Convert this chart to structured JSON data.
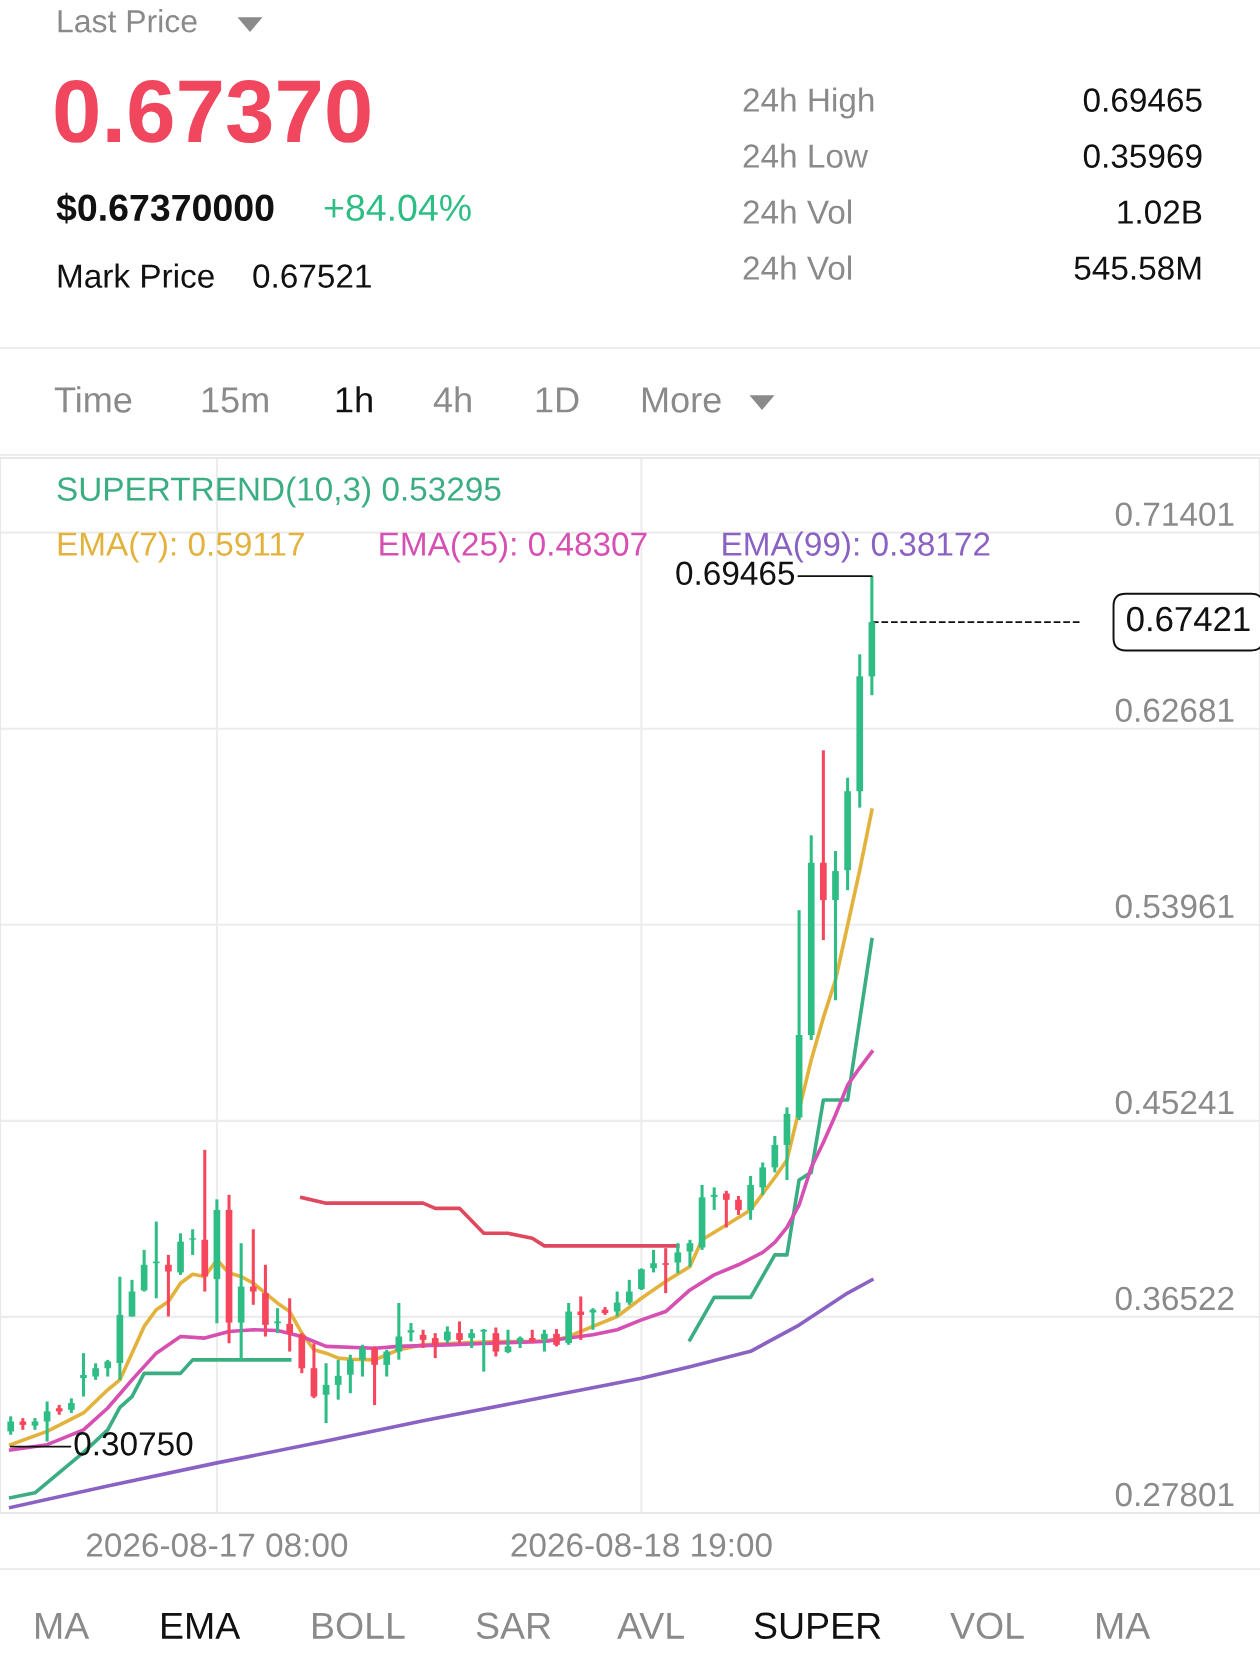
{
  "chart_data": {
    "type": "candlestick",
    "legend": "top left",
    "grid": true,
    "annotations": [
      "Last Price",
      "0.67370",
      "$0.67370000",
      "+84.04%",
      "Mark Price",
      "0.67521",
      "24h High",
      "0.69465",
      "24h Low",
      "0.35969",
      "24h Vol",
      "1.02B",
      "24h Vol",
      "545.58M",
      "Time",
      "15m",
      "1h",
      "4h",
      "1D",
      "More",
      "MA",
      "EMA",
      "BOLL",
      "SAR",
      "AVL",
      "SUPER",
      "VOL",
      "MA",
      {
        "text": "0.69465",
        "x": "2026-08-19T14:00",
        "y": 0.69465
      },
      {
        "text": "0.30750",
        "x": "2026-08-16T15:00",
        "y": 0.3075
      }
    ],
    "xlim": [
      "2026-08-16T14:07",
      "2026-08-20T22:00"
    ],
    "xticks": [
      {
        "value": "2026-08-17T08:00",
        "label": "2026-08-17 08:00"
      },
      {
        "value": "2026-08-18T19:00",
        "label": "2026-08-18 19:00"
      }
    ],
    "ylim": [
      0.27801,
      0.7472
    ],
    "yticks": [
      0.27801,
      0.36522,
      0.45241,
      0.53961,
      0.62681,
      0.71401
    ],
    "ref_lines": [
      {
        "axis": "y",
        "value": 0.67421,
        "label": "0.67421",
        "color": "#111111",
        "line_style": "dashed"
      }
    ],
    "series": [
      {
        "type": "line",
        "name": "SUPERTREND(10,3) 0.53295",
        "color": "#3aae82",
        "line_style": "solid",
        "x": [
          "2026-08-16T15:00",
          "2026-08-16T17:00",
          "2026-08-16T19:00",
          "2026-08-16T21:00",
          "2026-08-16T23:00",
          "2026-08-17T00:00",
          "2026-08-17T01:00",
          "2026-08-17T02:00",
          "2026-08-17T05:00",
          "2026-08-17T06:00",
          "2026-08-17T14:00",
          "2026-08-18T07:00",
          "2026-08-18T23:00",
          "2026-08-19T01:00",
          "2026-08-19T04:00",
          "2026-08-19T06:00",
          "2026-08-19T07:00",
          "2026-08-19T08:00",
          "2026-08-19T09:00",
          "2026-08-19T10:00",
          "2026-08-19T12:00",
          "2026-08-19T14:00"
        ],
        "values": [
          0.2848,
          0.287,
          0.296,
          0.305,
          0.315,
          0.325,
          0.3298,
          0.3401,
          0.3401,
          0.3461,
          0.3461,
          null,
          0.355,
          0.3739,
          0.3739,
          0.3928,
          0.3928,
          0.4261,
          0.4295,
          0.4617,
          0.4617,
          0.533
        ]
      },
      {
        "type": "line",
        "name": "EMA(7): 0.59117",
        "color": "#e3b23c",
        "line_style": "solid",
        "x": [
          "2026-08-16T15:00",
          "2026-08-16T18:00",
          "2026-08-16T21:00",
          "2026-08-16T23:00",
          "2026-08-17T00:00",
          "2026-08-17T01:00",
          "2026-08-17T02:00",
          "2026-08-17T03:00",
          "2026-08-17T04:00",
          "2026-08-17T05:00",
          "2026-08-17T06:00",
          "2026-08-17T07:00",
          "2026-08-17T08:00",
          "2026-08-17T09:00",
          "2026-08-17T10:00",
          "2026-08-17T11:00",
          "2026-08-17T12:00",
          "2026-08-17T13:00",
          "2026-08-17T14:00",
          "2026-08-17T15:00",
          "2026-08-17T16:00",
          "2026-08-17T17:00",
          "2026-08-17T18:00",
          "2026-08-17T19:00",
          "2026-08-17T21:00",
          "2026-08-17T23:00",
          "2026-08-18T01:00",
          "2026-08-18T04:00",
          "2026-08-18T07:00",
          "2026-08-18T10:00",
          "2026-08-18T12:00",
          "2026-08-18T13:00",
          "2026-08-18T15:00",
          "2026-08-18T17:00",
          "2026-08-18T19:00",
          "2026-08-18T21:00",
          "2026-08-18T23:00",
          "2026-08-19T00:00",
          "2026-08-19T02:00",
          "2026-08-19T04:00",
          "2026-08-19T06:00",
          "2026-08-19T07:00",
          "2026-08-19T09:00",
          "2026-08-19T10:00",
          "2026-08-19T11:00",
          "2026-08-19T12:00",
          "2026-08-19T13:00",
          "2026-08-19T14:00"
        ],
        "values": [
          0.3084,
          0.3143,
          0.3225,
          0.3328,
          0.3372,
          0.3491,
          0.361,
          0.3684,
          0.3721,
          0.3802,
          0.3842,
          0.3832,
          0.3906,
          0.3847,
          0.3832,
          0.3802,
          0.3758,
          0.3713,
          0.3676,
          0.358,
          0.3506,
          0.3491,
          0.3469,
          0.3464,
          0.3461,
          0.3506,
          0.3528,
          0.3536,
          0.3543,
          0.3543,
          0.355,
          0.3565,
          0.361,
          0.3654,
          0.3735,
          0.381,
          0.3876,
          0.3995,
          0.4061,
          0.4128,
          0.4272,
          0.435,
          0.4795,
          0.4983,
          0.515,
          0.5394,
          0.5639,
          0.5906
        ]
      },
      {
        "type": "line",
        "name": "EMA(25): 0.48307",
        "color": "#d64fb2",
        "line_style": "solid",
        "x": [
          "2026-08-16T15:00",
          "2026-08-16T18:00",
          "2026-08-16T21:00",
          "2026-08-16T23:00",
          "2026-08-17T01:00",
          "2026-08-17T03:00",
          "2026-08-17T05:00",
          "2026-08-17T07:00",
          "2026-08-17T09:00",
          "2026-08-17T11:00",
          "2026-08-17T13:00",
          "2026-08-17T15:00",
          "2026-08-17T17:00",
          "2026-08-17T21:00",
          "2026-08-17T23:00",
          "2026-08-18T03:00",
          "2026-08-18T07:00",
          "2026-08-18T11:00",
          "2026-08-18T13:00",
          "2026-08-18T15:00",
          "2026-08-18T17:00",
          "2026-08-18T19:00",
          "2026-08-18T21:00",
          "2026-08-18T23:00",
          "2026-08-19T01:00",
          "2026-08-19T03:00",
          "2026-08-19T05:00",
          "2026-08-19T06:00",
          "2026-08-19T07:00",
          "2026-08-19T08:00",
          "2026-08-19T09:00",
          "2026-08-19T10:00",
          "2026-08-19T11:00",
          "2026-08-19T12:00",
          "2026-08-19T13:00",
          "2026-08-19T14:00"
        ],
        "values": [
          0.306,
          0.3084,
          0.315,
          0.3247,
          0.3372,
          0.3491,
          0.3565,
          0.3558,
          0.3587,
          0.3595,
          0.3592,
          0.3565,
          0.3521,
          0.3513,
          0.3521,
          0.3528,
          0.3536,
          0.3543,
          0.3558,
          0.3573,
          0.3595,
          0.3639,
          0.3676,
          0.3772,
          0.3839,
          0.3884,
          0.3939,
          0.3984,
          0.405,
          0.415,
          0.4317,
          0.4428,
          0.455,
          0.4683,
          0.476,
          0.4831
        ]
      },
      {
        "type": "line",
        "name": "EMA(99): 0.38172",
        "color": "#8a62c4",
        "line_style": "solid",
        "x": [
          "2026-08-16T15:00",
          "2026-08-16T23:00",
          "2026-08-17T08:00",
          "2026-08-17T17:00",
          "2026-08-18T01:00",
          "2026-08-18T10:00",
          "2026-08-18T19:00",
          "2026-08-18T23:00",
          "2026-08-19T04:00",
          "2026-08-19T08:00",
          "2026-08-19T12:00",
          "2026-08-19T14:00"
        ],
        "values": [
          0.2805,
          0.29,
          0.3003,
          0.31,
          0.319,
          0.3285,
          0.3379,
          0.343,
          0.3499,
          0.3616,
          0.3758,
          0.3817
        ]
      },
      {
        "type": "line",
        "color": "#e0485e",
        "line_style": "solid",
        "x": [
          "2026-08-17T15:00",
          "2026-08-17T17:00",
          "2026-08-18T01:00",
          "2026-08-18T02:00",
          "2026-08-18T04:00",
          "2026-08-18T06:00",
          "2026-08-18T08:00",
          "2026-08-18T10:00",
          "2026-08-18T11:00",
          "2026-08-18T22:00"
        ],
        "values": [
          0.4183,
          0.4158,
          0.4158,
          0.4135,
          0.4135,
          0.4024,
          0.4024,
          0.4002,
          0.3968,
          0.3968
        ]
      },
      {
        "x": [
          "2026-08-16T15:00",
          "2026-08-16T16:00",
          "2026-08-16T17:00",
          "2026-08-16T18:00",
          "2026-08-16T19:00",
          "2026-08-16T20:00",
          "2026-08-16T21:00",
          "2026-08-16T22:00",
          "2026-08-16T23:00",
          "2026-08-17T00:00",
          "2026-08-17T01:00",
          "2026-08-17T02:00",
          "2026-08-17T03:00",
          "2026-08-17T04:00",
          "2026-08-17T05:00",
          "2026-08-17T06:00",
          "2026-08-17T07:00",
          "2026-08-17T08:00",
          "2026-08-17T09:00",
          "2026-08-17T10:00",
          "2026-08-17T11:00",
          "2026-08-17T12:00",
          "2026-08-17T13:00",
          "2026-08-17T14:00",
          "2026-08-17T15:00",
          "2026-08-17T16:00",
          "2026-08-17T17:00",
          "2026-08-17T18:00",
          "2026-08-17T19:00",
          "2026-08-17T20:00",
          "2026-08-17T21:00",
          "2026-08-17T22:00",
          "2026-08-17T23:00",
          "2026-08-18T00:00",
          "2026-08-18T01:00",
          "2026-08-18T02:00",
          "2026-08-18T03:00",
          "2026-08-18T04:00",
          "2026-08-18T05:00",
          "2026-08-18T06:00",
          "2026-08-18T07:00",
          "2026-08-18T08:00",
          "2026-08-18T09:00",
          "2026-08-18T10:00",
          "2026-08-18T11:00",
          "2026-08-18T12:00",
          "2026-08-18T13:00",
          "2026-08-18T14:00",
          "2026-08-18T15:00",
          "2026-08-18T16:00",
          "2026-08-18T17:00",
          "2026-08-18T18:00",
          "2026-08-18T19:00",
          "2026-08-18T20:00",
          "2026-08-18T21:00",
          "2026-08-18T22:00",
          "2026-08-18T23:00",
          "2026-08-19T00:00",
          "2026-08-19T01:00",
          "2026-08-19T02:00",
          "2026-08-19T03:00",
          "2026-08-19T04:00",
          "2026-08-19T05:00",
          "2026-08-19T06:00",
          "2026-08-19T07:00",
          "2026-08-19T08:00",
          "2026-08-19T09:00",
          "2026-08-19T10:00",
          "2026-08-19T11:00",
          "2026-08-19T12:00",
          "2026-08-19T13:00",
          "2026-08-19T14:00"
        ],
        "ohlc": [
          [
            0.3143,
            0.321,
            0.3128,
            0.3187
          ],
          [
            0.3187,
            0.3202,
            0.315,
            0.3172
          ],
          [
            0.3169,
            0.3202,
            0.315,
            0.3187
          ],
          [
            0.3187,
            0.3276,
            0.3098,
            0.3232
          ],
          [
            0.3246,
            0.3261,
            0.3217,
            0.3232
          ],
          [
            0.3239,
            0.329,
            0.3225,
            0.3269
          ],
          [
            0.338,
            0.3491,
            0.3298,
            0.3394
          ],
          [
            0.3387,
            0.3446,
            0.3372,
            0.3424
          ],
          [
            0.3424,
            0.3461,
            0.3387,
            0.3454
          ],
          [
            0.3447,
            0.3831,
            0.3372,
            0.3661
          ],
          [
            0.3654,
            0.3817,
            0.3654,
            0.3765
          ],
          [
            0.377,
            0.395,
            0.3765,
            0.3884
          ],
          [
            0.3891,
            0.4076,
            0.3735,
            0.3898
          ],
          [
            0.3884,
            0.3928,
            0.3654,
            0.3854
          ],
          [
            0.385,
            0.4024,
            0.3839,
            0.3987
          ],
          [
            0.3996,
            0.4042,
            0.3928,
            0.4002
          ],
          [
            0.3995,
            0.4395,
            0.3765,
            0.3832
          ],
          [
            0.382,
            0.4175,
            0.3624,
            0.4128
          ],
          [
            0.4128,
            0.4195,
            0.3535,
            0.3627
          ],
          [
            0.3627,
            0.398,
            0.3461,
            0.3787
          ],
          [
            0.3787,
            0.4042,
            0.3706,
            0.3765
          ],
          [
            0.3758,
            0.3884,
            0.3565,
            0.3617
          ],
          [
            0.3624,
            0.3691,
            0.358,
            0.3632
          ],
          [
            0.3621,
            0.3735,
            0.3498,
            0.358
          ],
          [
            0.3572,
            0.358,
            0.3402,
            0.3424
          ],
          [
            0.3424,
            0.3535,
            0.3291,
            0.3298
          ],
          [
            0.3306,
            0.3446,
            0.318,
            0.335
          ],
          [
            0.335,
            0.3461,
            0.3284,
            0.339
          ],
          [
            0.3395,
            0.3484,
            0.3313,
            0.3462
          ],
          [
            0.3462,
            0.3528,
            0.3387,
            0.3513
          ],
          [
            0.3513,
            0.3521,
            0.326,
            0.3439
          ],
          [
            0.3439,
            0.3506,
            0.3387,
            0.3498
          ],
          [
            0.3498,
            0.3714,
            0.3462,
            0.3565
          ],
          [
            0.3583,
            0.3625,
            0.3543,
            0.3593
          ],
          [
            0.3572,
            0.3595,
            0.3514,
            0.355
          ],
          [
            0.3558,
            0.358,
            0.3469,
            0.3528
          ],
          [
            0.3548,
            0.361,
            0.3536,
            0.3587
          ],
          [
            0.358,
            0.3632,
            0.3536,
            0.355
          ],
          [
            0.3558,
            0.3598,
            0.3514,
            0.358
          ],
          [
            0.3587,
            0.3598,
            0.3409,
            0.3595
          ],
          [
            0.358,
            0.3605,
            0.3476,
            0.3498
          ],
          [
            0.3496,
            0.3595,
            0.3491,
            0.3521
          ],
          [
            0.3543,
            0.3565,
            0.3514,
            0.3558
          ],
          [
            0.3558,
            0.3595,
            0.3536,
            0.3547
          ],
          [
            0.3553,
            0.3595,
            0.3498,
            0.3577
          ],
          [
            0.3577,
            0.3598,
            0.3521,
            0.3528
          ],
          [
            0.3536,
            0.3714,
            0.3528,
            0.3676
          ],
          [
            0.3676,
            0.3743,
            0.355,
            0.3661
          ],
          [
            0.3672,
            0.3691,
            0.3595,
            0.3684
          ],
          [
            0.3684,
            0.3696,
            0.3661,
            0.3669
          ],
          [
            0.3676,
            0.3765,
            0.3654,
            0.3716
          ],
          [
            0.3716,
            0.3817,
            0.3706,
            0.3765
          ],
          [
            0.3776,
            0.3868,
            0.3772,
            0.3864
          ],
          [
            0.3869,
            0.395,
            0.385,
            0.3891
          ],
          [
            0.3891,
            0.3958,
            0.3758,
            0.3884
          ],
          [
            0.3894,
            0.398,
            0.3847,
            0.3939
          ],
          [
            0.3943,
            0.3995,
            0.3876,
            0.398
          ],
          [
            0.3961,
            0.4239,
            0.395,
            0.4184
          ],
          [
            0.4186,
            0.4228,
            0.4128,
            0.4195
          ],
          [
            0.4201,
            0.4213,
            0.405,
            0.4173
          ],
          [
            0.4173,
            0.419,
            0.4106,
            0.4128
          ],
          [
            0.4128,
            0.4279,
            0.4084,
            0.4239
          ],
          [
            0.4228,
            0.4339,
            0.4195,
            0.4317
          ],
          [
            0.4317,
            0.4457,
            0.4295,
            0.4417
          ],
          [
            0.4417,
            0.4584,
            0.4261,
            0.4555
          ],
          [
            0.4539,
            0.5461,
            0.4528,
            0.4906
          ],
          [
            0.4906,
            0.5794,
            0.4884,
            0.5672
          ],
          [
            0.5672,
            0.6172,
            0.5328,
            0.5506
          ],
          [
            0.5506,
            0.5724,
            0.5061,
            0.5635
          ],
          [
            0.5639,
            0.605,
            0.555,
            0.599
          ],
          [
            0.599,
            0.6599,
            0.5917,
            0.6501
          ],
          [
            0.6501,
            0.69465,
            0.6417,
            0.67421
          ]
        ],
        "colors": [
          "#2ebd85",
          "#f6465d",
          "#2ebd85",
          "#2ebd85",
          "#f6465d",
          "#2ebd85",
          "#2ebd85",
          "#2ebd85",
          "#2ebd85",
          "#2ebd85",
          "#2ebd85",
          "#2ebd85",
          "#2ebd85",
          "#f6465d",
          "#2ebd85",
          "#2ebd85",
          "#f6465d",
          "#2ebd85",
          "#f6465d",
          "#2ebd85",
          "#f6465d",
          "#f6465d",
          "#2ebd85",
          "#f6465d",
          "#f6465d",
          "#f6465d",
          "#2ebd85",
          "#2ebd85",
          "#2ebd85",
          "#2ebd85",
          "#f6465d",
          "#2ebd85",
          "#2ebd85",
          "#2ebd85",
          "#f6465d",
          "#f6465d",
          "#2ebd85",
          "#f6465d",
          "#2ebd85",
          "#2ebd85",
          "#f6465d",
          "#2ebd85",
          "#2ebd85",
          "#f6465d",
          "#2ebd85",
          "#f6465d",
          "#2ebd85",
          "#f6465d",
          "#2ebd85",
          "#f6465d",
          "#2ebd85",
          "#2ebd85",
          "#2ebd85",
          "#2ebd85",
          "#f6465d",
          "#2ebd85",
          "#2ebd85",
          "#2ebd85",
          "#2ebd85",
          "#f6465d",
          "#f6465d",
          "#2ebd85",
          "#2ebd85",
          "#2ebd85",
          "#2ebd85",
          "#2ebd85",
          "#2ebd85",
          "#f6465d",
          "#2ebd85",
          "#2ebd85",
          "#2ebd85",
          "#2ebd85"
        ]
      }
    ]
  }
}
